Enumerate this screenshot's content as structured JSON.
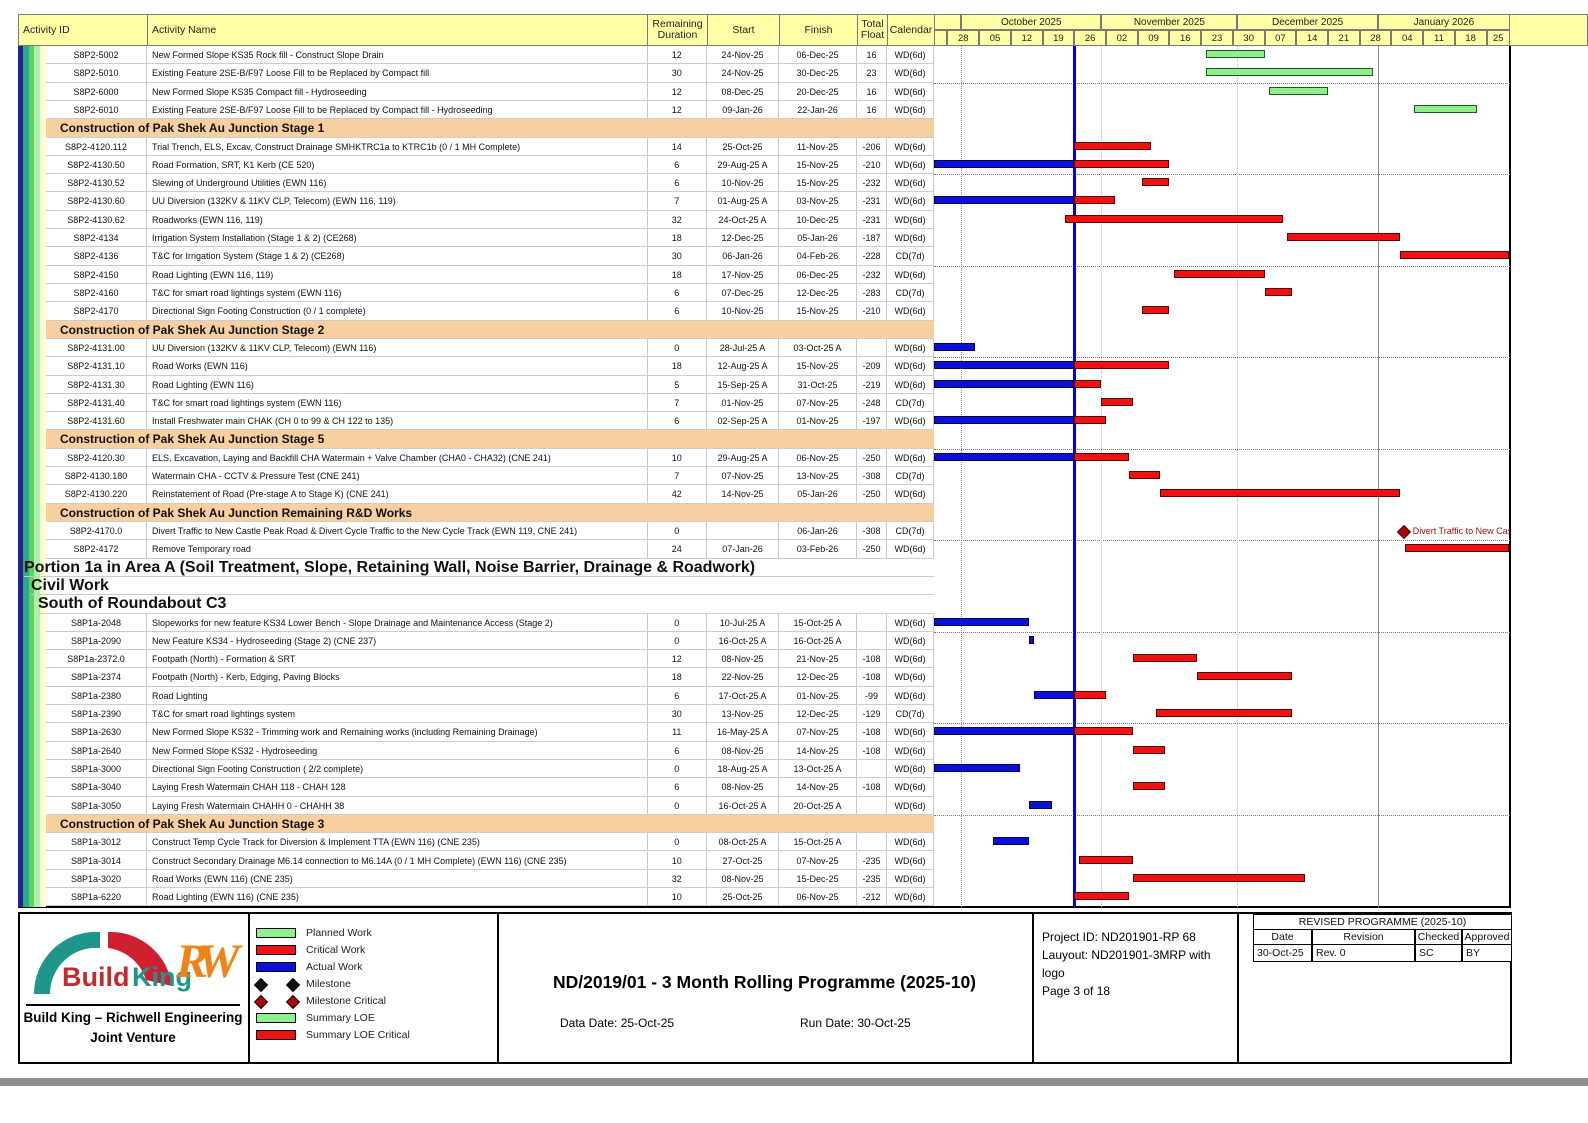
{
  "table_header": {
    "id": "Activity ID",
    "name": "Activity Name",
    "rd": "Remaining\nDuration",
    "start": "Start",
    "finish": "Finish",
    "tf": "Total\nFloat",
    "cal": "Calendar"
  },
  "chart_data": {
    "type": "bar",
    "title": "ND/2019/01 - 3 Month Rolling Programme (2025-10)",
    "timeline": {
      "data_date": "25-Oct-25",
      "months": [
        {
          "label": "",
          "from": "21-Sep-25"
        },
        {
          "label": "October 2025",
          "from": "01-Oct-25"
        },
        {
          "label": "November 2025",
          "from": "01-Nov-25"
        },
        {
          "label": "December 2025",
          "from": "01-Dec-25"
        },
        {
          "label": "January 2026",
          "from": "01-Jan-26"
        }
      ],
      "first_week_start": "28-Sep-25",
      "week_labels": [
        "28",
        "05",
        "12",
        "19",
        "26",
        "02",
        "09",
        "16",
        "23",
        "30",
        "07",
        "14",
        "21",
        "28",
        "04",
        "11",
        "18",
        "25"
      ]
    },
    "rows": [
      {
        "t": "a",
        "id": "S8P2-5002",
        "name": "New Formed Slope KS35 Rock fill - Construct Slope Drain",
        "rd": "12",
        "start": "24-Nov-25",
        "finish": "06-Dec-25",
        "tf": "16",
        "cal": "WD(6d)",
        "bar": "planned"
      },
      {
        "t": "a",
        "id": "S8P2-5010",
        "name": "Existing Feature 2SE-B/F97 Loose Fill to be Replaced by Compact fill",
        "rd": "30",
        "start": "24-Nov-25",
        "finish": "30-Dec-25",
        "tf": "23",
        "cal": "WD(6d)",
        "bar": "planned"
      },
      {
        "t": "a",
        "id": "S8P2-6000",
        "name": "New Formed Slope KS35 Compact fill - Hydroseeding",
        "rd": "12",
        "start": "08-Dec-25",
        "finish": "20-Dec-25",
        "tf": "16",
        "cal": "WD(6d)",
        "bar": "planned"
      },
      {
        "t": "a",
        "id": "S8P2-6010",
        "name": "Existing Feature 2SE-B/F97 Loose Fill to be Replaced by Compact fill  - Hydroseeding",
        "rd": "12",
        "start": "09-Jan-26",
        "finish": "22-Jan-26",
        "tf": "16",
        "cal": "WD(6d)",
        "bar": "planned"
      },
      {
        "t": "h",
        "name": "Construction of Pak Shek Au Junction Stage 1"
      },
      {
        "t": "a",
        "id": "S8P2-4120.112",
        "name": "Trial Trench, ELS, Excav, Construct Drainage SMHKTRC1a to KTRC1b (0 / 1 MH Complete)",
        "rd": "14",
        "start": "25-Oct-25",
        "finish": "11-Nov-25",
        "tf": "-206",
        "cal": "WD(6d)",
        "bar": "critical"
      },
      {
        "t": "a",
        "id": "S8P2-4130.50",
        "name": "Road Formation, SRT,  K1 Kerb          (CE 520)",
        "rd": "6",
        "start": "29-Aug-25 A",
        "finish": "15-Nov-25",
        "tf": "-210",
        "cal": "WD(6d)",
        "bar": "actual_critical"
      },
      {
        "t": "a",
        "id": "S8P2-4130.52",
        "name": "Slewing of Underground Utilities (EWN 116)",
        "rd": "6",
        "start": "10-Nov-25",
        "finish": "15-Nov-25",
        "tf": "-232",
        "cal": "WD(6d)",
        "bar": "critical"
      },
      {
        "t": "a",
        "id": "S8P2-4130.60",
        "name": "UU Diversion (132KV & 11KV CLP, Telecom)  (EWN 116, 119)",
        "rd": "7",
        "start": "01-Aug-25 A",
        "finish": "03-Nov-25",
        "tf": "-231",
        "cal": "WD(6d)",
        "bar": "actual_critical"
      },
      {
        "t": "a",
        "id": "S8P2-4130.62",
        "name": "Roadworks  (EWN 116, 119)",
        "rd": "32",
        "start": "24-Oct-25 A",
        "finish": "10-Dec-25",
        "tf": "-231",
        "cal": "WD(6d)",
        "bar": "critical"
      },
      {
        "t": "a",
        "id": "S8P2-4134",
        "name": "Irrigation System Installation  (Stage 1 & 2)                              (CE268)",
        "rd": "18",
        "start": "12-Dec-25",
        "finish": "05-Jan-26",
        "tf": "-187",
        "cal": "WD(6d)",
        "bar": "critical"
      },
      {
        "t": "a",
        "id": "S8P2-4136",
        "name": "T&C for  Irrigation System  (Stage 1 & 2)                              (CE268)",
        "rd": "30",
        "start": "06-Jan-26",
        "finish": "04-Feb-26",
        "tf": "-228",
        "cal": "CD(7d)",
        "bar": "critical"
      },
      {
        "t": "a",
        "id": "S8P2-4150",
        "name": "Road Lighting  (EWN 116, 119)",
        "rd": "18",
        "start": "17-Nov-25",
        "finish": "06-Dec-25",
        "tf": "-232",
        "cal": "WD(6d)",
        "bar": "critical"
      },
      {
        "t": "a",
        "id": "S8P2-4160",
        "name": "T&C for smart road lightings system  (EWN 116)",
        "rd": "6",
        "start": "07-Dec-25",
        "finish": "12-Dec-25",
        "tf": "-283",
        "cal": "CD(7d)",
        "bar": "critical"
      },
      {
        "t": "a",
        "id": "S8P2-4170",
        "name": "Directional Sign Footing Construction   (0 / 1 complete)",
        "rd": "6",
        "start": "10-Nov-25",
        "finish": "15-Nov-25",
        "tf": "-210",
        "cal": "WD(6d)",
        "bar": "critical"
      },
      {
        "t": "h",
        "name": "Construction of Pak Shek Au Junction Stage 2"
      },
      {
        "t": "a",
        "id": "S8P2-4131.00",
        "name": "UU Diversion (132KV & 11KV CLP, Telecom)  (EWN 116)",
        "rd": "0",
        "start": "28-Jul-25 A",
        "finish": "03-Oct-25 A",
        "tf": "",
        "cal": "WD(6d)",
        "bar": "actual"
      },
      {
        "t": "a",
        "id": "S8P2-4131.10",
        "name": "Road Works  (EWN 116)",
        "rd": "18",
        "start": "12-Aug-25 A",
        "finish": "15-Nov-25",
        "tf": "-209",
        "cal": "WD(6d)",
        "bar": "actual_critical"
      },
      {
        "t": "a",
        "id": "S8P2-4131.30",
        "name": "Road Lighting (EWN 116)",
        "rd": "5",
        "start": "15-Sep-25 A",
        "finish": "31-Oct-25",
        "tf": "-219",
        "cal": "WD(6d)",
        "bar": "actual_critical"
      },
      {
        "t": "a",
        "id": "S8P2-4131.40",
        "name": "T&C for smart road lightings system  (EWN 116)",
        "rd": "7",
        "start": "01-Nov-25",
        "finish": "07-Nov-25",
        "tf": "-248",
        "cal": "CD(7d)",
        "bar": "critical"
      },
      {
        "t": "a",
        "id": "S8P2-4131.60",
        "name": "Install Freshwater main CHAK (CH 0 to 99 & CH 122 to 135)",
        "rd": "6",
        "start": "02-Sep-25 A",
        "finish": "01-Nov-25",
        "tf": "-197",
        "cal": "WD(6d)",
        "bar": "actual_critical"
      },
      {
        "t": "h",
        "name": "Construction of Pak Shek Au Junction Stage 5"
      },
      {
        "t": "a",
        "id": "S8P2-4120.30",
        "name": "ELS, Excavation, Laying and Backfill CHA Watermain + Valve Chamber (CHA0 - CHA32)   (CNE 241)",
        "rd": "10",
        "start": "29-Aug-25 A",
        "finish": "06-Nov-25",
        "tf": "-250",
        "cal": "WD(6d)",
        "bar": "actual_critical"
      },
      {
        "t": "a",
        "id": "S8P2-4130.180",
        "name": "Watermain CHA - CCTV & Pressure Test   (CNE 241)",
        "rd": "7",
        "start": "07-Nov-25",
        "finish": "13-Nov-25",
        "tf": "-308",
        "cal": "CD(7d)",
        "bar": "critical"
      },
      {
        "t": "a",
        "id": "S8P2-4130.220",
        "name": "Reinstatement of Road (Pre-stage A to Stage K)   (CNE 241)",
        "rd": "42",
        "start": "14-Nov-25",
        "finish": "05-Jan-26",
        "tf": "-250",
        "cal": "WD(6d)",
        "bar": "critical"
      },
      {
        "t": "h",
        "name": "Construction of Pak Shek Au Junction Remaining R&D Works"
      },
      {
        "t": "a",
        "id": "S8P2-4170.0",
        "name": "Divert Traffic to New Castle Peak Road & Divert Cycle Traffic to the New Cycle Track   (EWN 119, CNE 241)",
        "rd": "0",
        "start": "",
        "finish": "06-Jan-26",
        "tf": "-308",
        "cal": "CD(7d)",
        "bar": "milestone_critical",
        "bar_label": "Divert Traffic to New Castl"
      },
      {
        "t": "a",
        "id": "S8P2-4172",
        "name": "Remove Temporary road",
        "rd": "24",
        "start": "07-Jan-26",
        "finish": "03-Feb-26",
        "tf": "-250",
        "cal": "WD(6d)",
        "bar": "critical"
      },
      {
        "t": "b1",
        "name": "Portion 1a in Area A   (Soil Treatment, Slope,  Retaining Wall,  Noise Barrier,  Drainage & Roadwork)"
      },
      {
        "t": "b2",
        "name": "Civil Work"
      },
      {
        "t": "b3",
        "name": "South of Roundabout C3"
      },
      {
        "t": "a",
        "id": "S8P1a-2048",
        "name": "Slopeworks for new feature KS34 Lower Bench - Slope Drainage and Maintenance Access (Stage 2)",
        "rd": "0",
        "start": "10-Jul-25 A",
        "finish": "15-Oct-25 A",
        "tf": "",
        "cal": "WD(6d)",
        "bar": "actual"
      },
      {
        "t": "a",
        "id": "S8P1a-2090",
        "name": "New Feature KS34 - Hydroseeding (Stage 2)   (CNE 237)",
        "rd": "0",
        "start": "16-Oct-25 A",
        "finish": "16-Oct-25 A",
        "tf": "",
        "cal": "WD(6d)",
        "bar": "actual"
      },
      {
        "t": "a",
        "id": "S8P1a-2372.0",
        "name": "Footpath (North) - Formation & SRT",
        "rd": "12",
        "start": "08-Nov-25",
        "finish": "21-Nov-25",
        "tf": "-108",
        "cal": "WD(6d)",
        "bar": "critical"
      },
      {
        "t": "a",
        "id": "S8P1a-2374",
        "name": "Footpath (North)  - Kerb, Edging, Paving Blocks",
        "rd": "18",
        "start": "22-Nov-25",
        "finish": "12-Dec-25",
        "tf": "-108",
        "cal": "WD(6d)",
        "bar": "critical"
      },
      {
        "t": "a",
        "id": "S8P1a-2380",
        "name": "Road Lighting",
        "rd": "6",
        "start": "17-Oct-25 A",
        "finish": "01-Nov-25",
        "tf": "-99",
        "cal": "WD(6d)",
        "bar": "actual_critical"
      },
      {
        "t": "a",
        "id": "S8P1a-2390",
        "name": "T&C for smart road lightings system",
        "rd": "30",
        "start": "13-Nov-25",
        "finish": "12-Dec-25",
        "tf": "-129",
        "cal": "CD(7d)",
        "bar": "critical"
      },
      {
        "t": "a",
        "id": "S8P1a-2630",
        "name": "New Formed Slope KS32 - Trimming work and Remaining works (including Remaining Drainage)",
        "rd": "11",
        "start": "16-May-25 A",
        "finish": "07-Nov-25",
        "tf": "-108",
        "cal": "WD(6d)",
        "bar": "actual_critical"
      },
      {
        "t": "a",
        "id": "S8P1a-2640",
        "name": "New Formed Slope KS32 - Hydroseeding",
        "rd": "6",
        "start": "08-Nov-25",
        "finish": "14-Nov-25",
        "tf": "-108",
        "cal": "WD(6d)",
        "bar": "critical"
      },
      {
        "t": "a",
        "id": "S8P1a-3000",
        "name": "Directional Sign Footing Construction  ( 2/2 complete)",
        "rd": "0",
        "start": "18-Aug-25 A",
        "finish": "13-Oct-25 A",
        "tf": "",
        "cal": "WD(6d)",
        "bar": "actual"
      },
      {
        "t": "a",
        "id": "S8P1a-3040",
        "name": "Laying Fresh Watermain CHAH 118 - CHAH 128",
        "rd": "6",
        "start": "08-Nov-25",
        "finish": "14-Nov-25",
        "tf": "-108",
        "cal": "WD(6d)",
        "bar": "critical"
      },
      {
        "t": "a",
        "id": "S8P1a-3050",
        "name": "Laying Fresh Watermain CHAHH 0 - CHAHH 38",
        "rd": "0",
        "start": "16-Oct-25 A",
        "finish": "20-Oct-25 A",
        "tf": "",
        "cal": "WD(6d)",
        "bar": "actual"
      },
      {
        "t": "h",
        "name": "Construction of Pak Shek Au Junction Stage 3"
      },
      {
        "t": "a",
        "id": "S8P1a-3012",
        "name": "Construct Temp Cycle Track for Diversion & Implement TTA    (EWN 116)   (CNE 235)",
        "rd": "0",
        "start": "08-Oct-25 A",
        "finish": "15-Oct-25 A",
        "tf": "",
        "cal": "WD(6d)",
        "bar": "actual"
      },
      {
        "t": "a",
        "id": "S8P1a-3014",
        "name": "Construct Secondary Drainage M6.14 connection to M6.14A (0 / 1 MH Complete)   (EWN 116)   (CNE 235)",
        "rd": "10",
        "start": "27-Oct-25",
        "finish": "07-Nov-25",
        "tf": "-235",
        "cal": "WD(6d)",
        "bar": "critical"
      },
      {
        "t": "a",
        "id": "S8P1a-3020",
        "name": "Road Works    (EWN 116)   (CNE 235)",
        "rd": "32",
        "start": "08-Nov-25",
        "finish": "15-Dec-25",
        "tf": "-235",
        "cal": "WD(6d)",
        "bar": "critical"
      },
      {
        "t": "a",
        "id": "S8P1a-6220",
        "name": "Road Lighting  (EWN 116)   (CNE 235)",
        "rd": "10",
        "start": "25-Oct-25",
        "finish": "06-Nov-25",
        "tf": "-212",
        "cal": "WD(6d)",
        "bar": "critical"
      }
    ]
  },
  "legend": [
    {
      "swatch": "planned",
      "label": "Planned Work"
    },
    {
      "swatch": "critical",
      "label": "Critical Work"
    },
    {
      "swatch": "actual",
      "label": "Actual Work"
    },
    {
      "swatch": "milestone",
      "label": "Milestone"
    },
    {
      "swatch": "milestone_critical",
      "label": "Milestone Critical"
    },
    {
      "swatch": "summary_loe",
      "label": "Summary LOE"
    },
    {
      "swatch": "summary_loe_critical",
      "label": "Summary LOE Critical"
    }
  ],
  "footer": {
    "title": "ND/2019/01 - 3 Month Rolling Programme (2025-10)",
    "data_date": "Data Date: 25-Oct-25",
    "run_date": "Run Date: 30-Oct-25",
    "project_lines": [
      "Project ID: ND201901-RP 68",
      "Lauyout: ND201901-3MRP with",
      "logo",
      "Page 3 of 18"
    ],
    "logo": {
      "brand_build": "Build",
      "brand_king": "King",
      "monogram": "RW",
      "line1": "Build King – Richwell Engineering",
      "line2": "Joint Venture"
    },
    "revision": {
      "title": "REVISED PROGRAMME (2025-10)",
      "headers": [
        "Date",
        "Revision",
        "Checked",
        "Approved"
      ],
      "row": [
        "30-Oct-25",
        "Rev. 0",
        "SC",
        "BY"
      ]
    }
  },
  "colors": {
    "planned": "#8df08d",
    "critical": "#ee1212",
    "actual": "#0a12d8",
    "milestone": "#111111",
    "milestone_critical": "#b00505",
    "data_date_line": "#0000ee",
    "header_bg": "#ffffa6",
    "section_bg": "#f8cfa0",
    "band1_bg": "#ffffa0",
    "band2_bg": "#c9ffff",
    "band3_bg": "#aaffaa"
  }
}
